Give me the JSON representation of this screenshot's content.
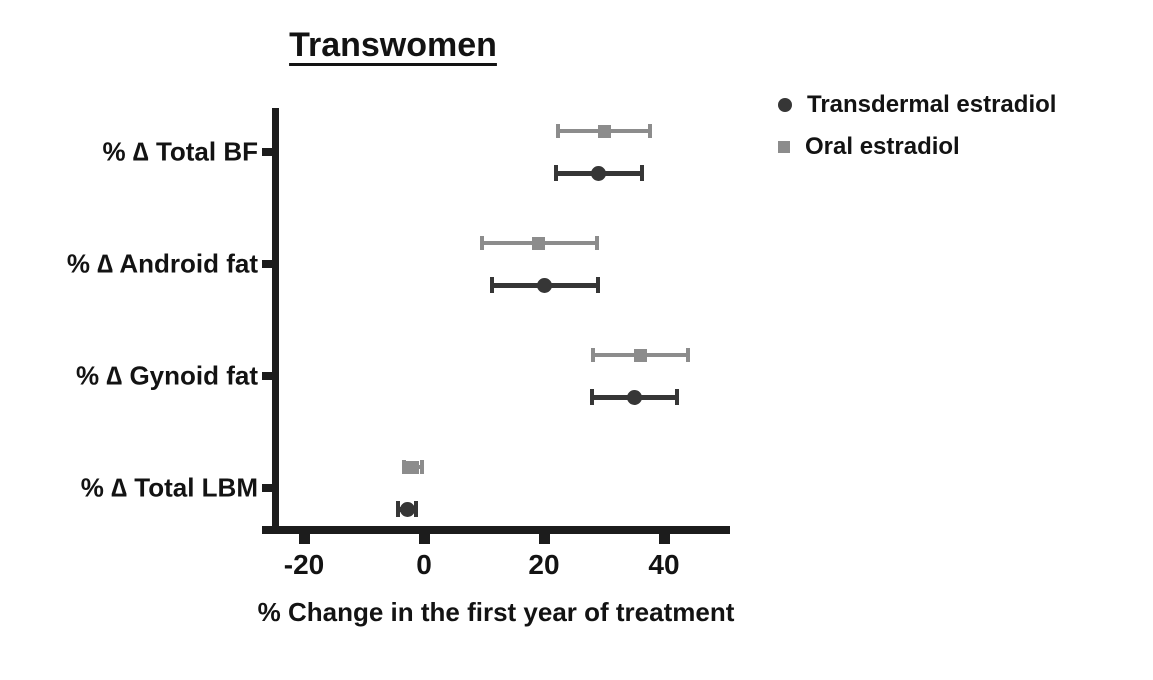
{
  "chart_data": {
    "type": "scatter",
    "subtype": "horizontal-error-bar-forest-plot",
    "title": "Transwomen",
    "xlabel": "% Change in the first year of treatment",
    "ylabel": "",
    "categories": [
      "% ∆ Total BF",
      "% ∆ Android fat",
      "% ∆ Gynoid fat",
      "% ∆ Total LBM"
    ],
    "x_ticks": [
      -20,
      0,
      20,
      40
    ],
    "xlim": [
      -27,
      51
    ],
    "grid": false,
    "legend_position": "top-right",
    "axis_color": "#1c1c1c",
    "text_color": "#131313",
    "series": [
      {
        "name": "Oral estradiol",
        "marker": "square",
        "color": "#8c8c8c",
        "position": "above",
        "values": [
          30,
          19,
          36,
          -2
        ],
        "ci_low": [
          22.3,
          9.7,
          28.2,
          -3.4
        ],
        "ci_high": [
          37.7,
          28.8,
          44.0,
          -0.3
        ]
      },
      {
        "name": "Transdermal estradiol",
        "marker": "circle",
        "color": "#363636",
        "position": "below",
        "values": [
          29,
          20,
          35,
          -2.8
        ],
        "ci_low": [
          22.0,
          11.3,
          28.0,
          -4.4
        ],
        "ci_high": [
          36.4,
          29.0,
          42.1,
          -1.3
        ]
      }
    ],
    "legend": [
      {
        "label": "Transdermal estradiol",
        "marker": "circle",
        "color": "#363636"
      },
      {
        "label": "Oral estradiol",
        "marker": "square",
        "color": "#8c8c8c"
      }
    ]
  }
}
